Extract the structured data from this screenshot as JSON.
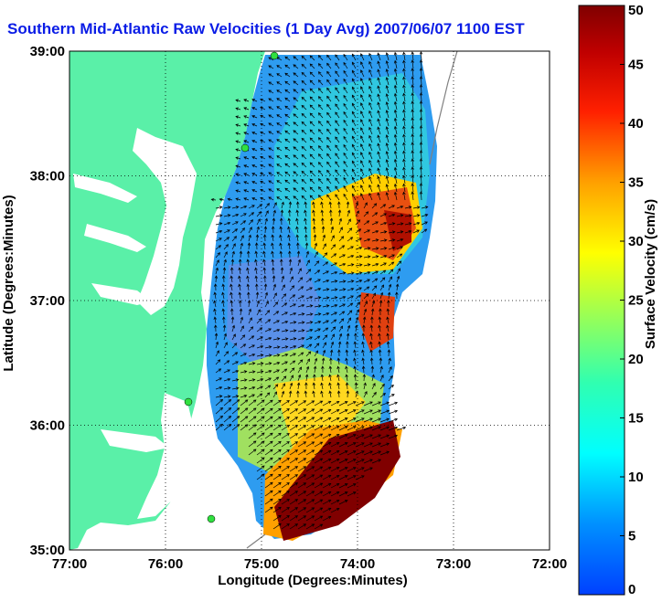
{
  "title": "Southern Mid-Atlantic Raw Velocities (1 Day Avg) 2007/06/07 1100 EST",
  "map": {
    "xlabel": "Longitude (Degrees:Minutes)",
    "ylabel": "Latitude (Degrees:Minutes)",
    "lon_range": [
      -77,
      -72
    ],
    "lat_range": [
      35,
      39
    ],
    "x_ticks": [
      "77:00",
      "76:00",
      "75:00",
      "74:00",
      "73:00",
      "72:00"
    ],
    "y_ticks": [
      "39:00",
      "38:00",
      "37:00",
      "36:00",
      "35:00"
    ],
    "grid": "dotted",
    "land_color": "#5af0a8",
    "water_color": "#ffffff",
    "arrow_color": "#000000"
  },
  "colorbar": {
    "label": "Surface Velocity (cm/s)",
    "min": 0,
    "max": 50,
    "ticks": [
      "0",
      "5",
      "10",
      "15",
      "20",
      "25",
      "30",
      "35",
      "40",
      "45",
      "50"
    ],
    "colormap": "jet",
    "position": "right"
  }
}
